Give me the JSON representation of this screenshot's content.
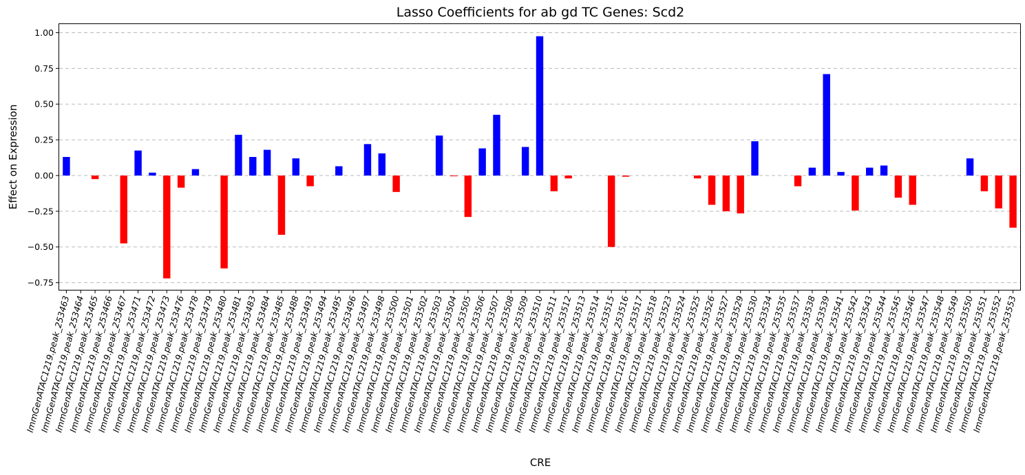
{
  "chart_data": {
    "type": "bar",
    "title": "Lasso Coefficients for ab gd TC Genes: Scd2",
    "xlabel": "CRE",
    "ylabel": "Effect on Expression",
    "ylim": [
      -0.8,
      1.06
    ],
    "yticks": [
      -0.75,
      -0.5,
      -0.25,
      0.0,
      0.25,
      0.5,
      0.75,
      1.0
    ],
    "ytick_labels": [
      "−0.75",
      "−0.50",
      "−0.25",
      "0.00",
      "0.25",
      "0.50",
      "0.75",
      "1.00"
    ],
    "grid": "y, dashed",
    "positive_color": "#0000ff",
    "negative_color": "#ff0000",
    "categories": [
      "ImmGenATAC1219.peak_253463",
      "ImmGenATAC1219.peak_253464",
      "ImmGenATAC1219.peak_253465",
      "ImmGenATAC1219.peak_253466",
      "ImmGenATAC1219.peak_253467",
      "ImmGenATAC1219.peak_253471",
      "ImmGenATAC1219.peak_253472",
      "ImmGenATAC1219.peak_253473",
      "ImmGenATAC1219.peak_253476",
      "ImmGenATAC1219.peak_253478",
      "ImmGenATAC1219.peak_253479",
      "ImmGenATAC1219.peak_253480",
      "ImmGenATAC1219.peak_253481",
      "ImmGenATAC1219.peak_253483",
      "ImmGenATAC1219.peak_253484",
      "ImmGenATAC1219.peak_253485",
      "ImmGenATAC1219.peak_253488",
      "ImmGenATAC1219.peak_253493",
      "ImmGenATAC1219.peak_253494",
      "ImmGenATAC1219.peak_253495",
      "ImmGenATAC1219.peak_253496",
      "ImmGenATAC1219.peak_253497",
      "ImmGenATAC1219.peak_253498",
      "ImmGenATAC1219.peak_253500",
      "ImmGenATAC1219.peak_253501",
      "ImmGenATAC1219.peak_253502",
      "ImmGenATAC1219.peak_253503",
      "ImmGenATAC1219.peak_253504",
      "ImmGenATAC1219.peak_253505",
      "ImmGenATAC1219.peak_253506",
      "ImmGenATAC1219.peak_253507",
      "ImmGenATAC1219.peak_253508",
      "ImmGenATAC1219.peak_253509",
      "ImmGenATAC1219.peak_253510",
      "ImmGenATAC1219.peak_253511",
      "ImmGenATAC1219.peak_253512",
      "ImmGenATAC1219.peak_253513",
      "ImmGenATAC1219.peak_253514",
      "ImmGenATAC1219.peak_253515",
      "ImmGenATAC1219.peak_253516",
      "ImmGenATAC1219.peak_253517",
      "ImmGenATAC1219.peak_253518",
      "ImmGenATAC1219.peak_253523",
      "ImmGenATAC1219.peak_253524",
      "ImmGenATAC1219.peak_253525",
      "ImmGenATAC1219.peak_253526",
      "ImmGenATAC1219.peak_253527",
      "ImmGenATAC1219.peak_253529",
      "ImmGenATAC1219.peak_253530",
      "ImmGenATAC1219.peak_253534",
      "ImmGenATAC1219.peak_253535",
      "ImmGenATAC1219.peak_253537",
      "ImmGenATAC1219.peak_253538",
      "ImmGenATAC1219.peak_253539",
      "ImmGenATAC1219.peak_253541",
      "ImmGenATAC1219.peak_253542",
      "ImmGenATAC1219.peak_253543",
      "ImmGenATAC1219.peak_253544",
      "ImmGenATAC1219.peak_253545",
      "ImmGenATAC1219.peak_253546",
      "ImmGenATAC1219.peak_253547",
      "ImmGenATAC1219.peak_253548",
      "ImmGenATAC1219.peak_253549",
      "ImmGenATAC1219.peak_253550",
      "ImmGenATAC1219.peak_253551",
      "ImmGenATAC1219.peak_253552",
      "ImmGenATAC1219.peak_253553"
    ],
    "values": [
      0.13,
      0.0,
      -0.025,
      0.0,
      -0.475,
      0.175,
      0.02,
      -0.72,
      -0.085,
      0.045,
      0.0,
      -0.65,
      0.285,
      0.13,
      0.18,
      -0.415,
      0.12,
      -0.075,
      0.0,
      0.065,
      0.0,
      0.22,
      0.155,
      -0.115,
      0.0,
      0.0,
      0.28,
      -0.005,
      -0.29,
      0.19,
      0.425,
      0.0,
      0.2,
      0.975,
      -0.11,
      -0.02,
      0.0,
      0.0,
      -0.5,
      -0.008,
      0.0,
      0.0,
      0.0,
      0.0,
      -0.02,
      -0.205,
      -0.25,
      -0.265,
      0.24,
      0.0,
      0.0,
      -0.075,
      0.055,
      0.71,
      0.025,
      -0.245,
      0.055,
      0.07,
      -0.155,
      -0.205,
      0.0,
      0.0,
      0.0,
      0.12,
      -0.11,
      -0.23,
      -0.365
    ]
  }
}
